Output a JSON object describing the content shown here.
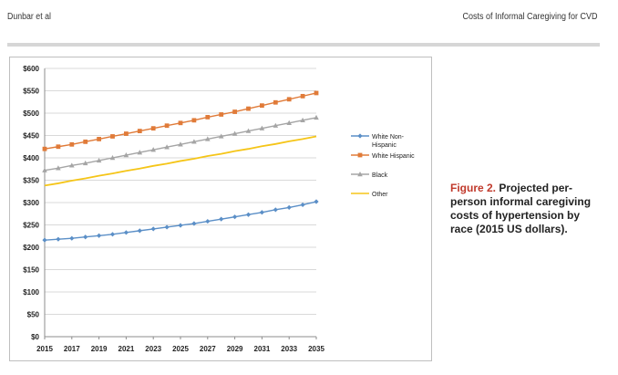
{
  "header": {
    "left": "Dunbar et al",
    "right": "Costs of Informal Caregiving for CVD"
  },
  "caption": {
    "label": "Figure 2.",
    "text": " Projected per-person informal caregiving costs of hypertension by race (2015 US dollars)."
  },
  "colors": {
    "white_non_hispanic": "#5b8fc7",
    "white_hispanic": "#e07b39",
    "black": "#a5a5a5",
    "other": "#f5c518",
    "caption_label": "#c0392b"
  },
  "chart_data": {
    "type": "line",
    "title": "",
    "xlabel": "",
    "ylabel": "",
    "ylim": [
      0,
      600
    ],
    "yticks": [
      "$0",
      "$50",
      "$100",
      "$150",
      "$200",
      "$250",
      "$300",
      "$350",
      "$400",
      "$450",
      "$500",
      "$550",
      "$600"
    ],
    "xticks": [
      "2015",
      "2017",
      "2019",
      "2021",
      "2023",
      "2025",
      "2027",
      "2029",
      "2031",
      "2033",
      "2035"
    ],
    "x": [
      2015,
      2016,
      2017,
      2018,
      2019,
      2020,
      2021,
      2022,
      2023,
      2024,
      2025,
      2026,
      2027,
      2028,
      2029,
      2030,
      2031,
      2032,
      2033,
      2034,
      2035
    ],
    "series": [
      {
        "name": "White Non-Hispanic",
        "legend_lines": [
          "White Non-",
          "Hispanic"
        ],
        "marker": "diamond",
        "color": "#5b8fc7",
        "values": [
          216,
          218,
          220,
          223,
          226,
          229,
          233,
          237,
          241,
          245,
          249,
          253,
          258,
          263,
          268,
          273,
          278,
          284,
          289,
          295,
          302
        ]
      },
      {
        "name": "White Hispanic",
        "legend_lines": [
          "White Hispanic"
        ],
        "marker": "square",
        "color": "#e07b39",
        "values": [
          420,
          425,
          430,
          436,
          442,
          448,
          454,
          460,
          466,
          472,
          478,
          484,
          491,
          497,
          503,
          510,
          517,
          524,
          531,
          538,
          545
        ]
      },
      {
        "name": "Black",
        "legend_lines": [
          "Black"
        ],
        "marker": "triangle",
        "color": "#a5a5a5",
        "values": [
          372,
          377,
          383,
          388,
          394,
          400,
          406,
          412,
          418,
          424,
          430,
          436,
          442,
          448,
          454,
          460,
          466,
          472,
          478,
          484,
          490
        ]
      },
      {
        "name": "Other",
        "legend_lines": [
          "Other"
        ],
        "marker": "none",
        "color": "#f5c518",
        "values": [
          338,
          343,
          349,
          354,
          360,
          365,
          371,
          376,
          382,
          387,
          393,
          398,
          404,
          409,
          415,
          420,
          426,
          431,
          437,
          442,
          448
        ]
      }
    ],
    "grid": true,
    "legend": "right"
  }
}
